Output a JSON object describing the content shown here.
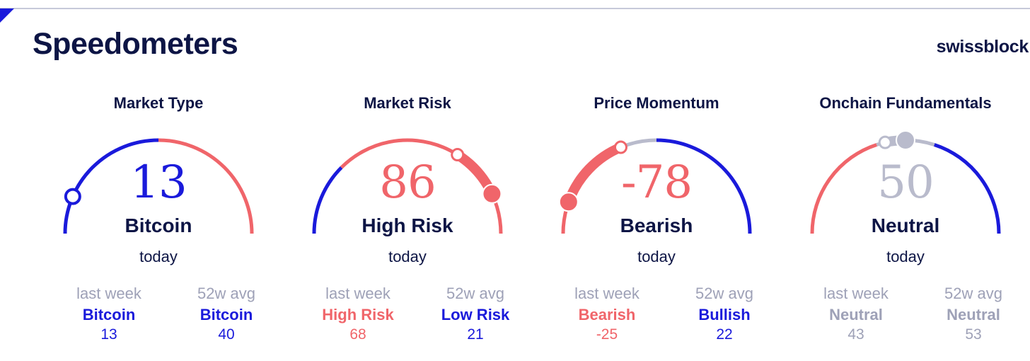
{
  "header": {
    "title": "Speedometers",
    "brand": "swissblock"
  },
  "colors": {
    "blue": "#1a1adb",
    "red": "#f0656a",
    "gray": "#b9bbcc",
    "navy": "#0d1545",
    "muted": "#9ea1b7"
  },
  "labels": {
    "today": "today",
    "last_week": "last week",
    "avg_52w": "52w avg"
  },
  "chart_data": [
    {
      "type": "gauge",
      "title": "Market Type",
      "range": [
        0,
        100
      ],
      "value": "13",
      "value_num": 13,
      "state": "Bitcoin",
      "value_color": "#1a1adb",
      "segments": [
        {
          "from": 0,
          "to": 50,
          "color": "#1a1adb"
        },
        {
          "from": 50,
          "to": 100,
          "color": "#f0656a"
        }
      ],
      "highlight": null,
      "marker_style": "hollow",
      "marker_color": "#1a1adb",
      "last_week": {
        "state": "Bitcoin",
        "value": "13",
        "value_num": 13,
        "color": "#1a1adb"
      },
      "avg_52w": {
        "state": "Bitcoin",
        "value": "40",
        "value_num": 40,
        "color": "#1a1adb"
      }
    },
    {
      "type": "gauge",
      "title": "Market Risk",
      "range": [
        0,
        100
      ],
      "value": "86",
      "value_num": 86,
      "state": "High Risk",
      "value_color": "#f0656a",
      "segments": [
        {
          "from": 0,
          "to": 25,
          "color": "#1a1adb"
        },
        {
          "from": 25,
          "to": 100,
          "color": "#f0656a"
        }
      ],
      "highlight": {
        "from": 68,
        "to": 86,
        "color": "#f0656a"
      },
      "marker_style": "solid",
      "marker_color": "#f0656a",
      "last_week": {
        "state": "High Risk",
        "value": "68",
        "value_num": 68,
        "color": "#f0656a"
      },
      "avg_52w": {
        "state": "Low Risk",
        "value": "21",
        "value_num": 21,
        "color": "#1a1adb"
      }
    },
    {
      "type": "gauge",
      "title": "Price Momentum",
      "range": [
        -100,
        100
      ],
      "value": "-78",
      "value_num": -78,
      "state": "Bearish",
      "value_color": "#f0656a",
      "segments": [
        {
          "from": -100,
          "to": -25,
          "color": "#f0656a"
        },
        {
          "from": -25,
          "to": 0,
          "color": "#b9bbcc"
        },
        {
          "from": 0,
          "to": 100,
          "color": "#1a1adb"
        }
      ],
      "highlight": {
        "from": -78,
        "to": -25,
        "color": "#f0656a"
      },
      "marker_style": "solid",
      "marker_color": "#f0656a",
      "last_week": {
        "state": "Bearish",
        "value": "-25",
        "value_num": -25,
        "color": "#f0656a"
      },
      "avg_52w": {
        "state": "Bullish",
        "value": "22",
        "value_num": 22,
        "color": "#1a1adb"
      }
    },
    {
      "type": "gauge",
      "title": "Onchain Fundamentals",
      "range": [
        0,
        100
      ],
      "value": "50",
      "value_num": 50,
      "state": "Neutral",
      "value_color": "#b9bbcc",
      "segments": [
        {
          "from": 0,
          "to": 40,
          "color": "#f0656a"
        },
        {
          "from": 40,
          "to": 60,
          "color": "#b9bbcc"
        },
        {
          "from": 60,
          "to": 100,
          "color": "#1a1adb"
        }
      ],
      "highlight": {
        "from": 43,
        "to": 50,
        "color": "#b9bbcc"
      },
      "marker_style": "solid",
      "marker_color": "#b9bbcc",
      "last_week": {
        "state": "Neutral",
        "value": "43",
        "value_num": 43,
        "color": "#9ea1b7"
      },
      "avg_52w": {
        "state": "Neutral",
        "value": "53",
        "value_num": 53,
        "color": "#9ea1b7"
      }
    }
  ]
}
